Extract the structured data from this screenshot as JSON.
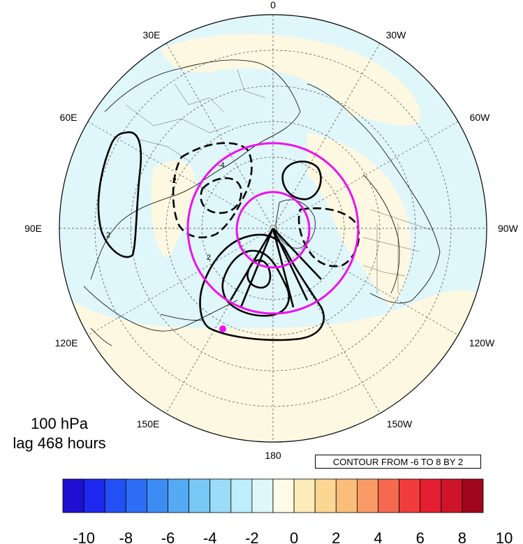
{
  "map": {
    "projection": "north-polar-stereographic",
    "longitude_labels": {
      "top": "0",
      "top_left": "30E",
      "top_right": "30W",
      "upper_left": "60E",
      "upper_right": "60W",
      "left": "90E",
      "right": "90W",
      "lower_left": "120E",
      "lower_right": "120W",
      "bottom_left": "150E",
      "bottom_right": "150W",
      "bottom": "180"
    },
    "colors": {
      "ocean_light_blue": "#dff6fb",
      "land_cream": "#fdf8e1",
      "coastline": "#000000",
      "contour": "#000000",
      "reference_circle": "#ee11ee",
      "marker": "#ee11ee"
    }
  },
  "annotation": {
    "level": "100 hPa",
    "lag": "lag 468 hours",
    "contour_info": "CONTOUR FROM -6 TO 8 BY 2"
  },
  "contour_labels": [
    "2",
    "-2",
    "-4",
    "2"
  ],
  "colorbar": {
    "labels": [
      "-10",
      "-8",
      "-6",
      "-4",
      "-2",
      "0",
      "2",
      "4",
      "6",
      "8",
      "10"
    ],
    "colors": [
      "#1e0fd2",
      "#1e28f0",
      "#2350f5",
      "#2d6ef5",
      "#3d8cf5",
      "#55aaf5",
      "#78c8f5",
      "#9bdcf8",
      "#bfeefb",
      "#dff7fb",
      "#fffbe6",
      "#fdecb8",
      "#fcd794",
      "#fbbd7a",
      "#f99a64",
      "#f56a4e",
      "#f03c3c",
      "#e61e32",
      "#cd1428",
      "#a0061e"
    ]
  }
}
